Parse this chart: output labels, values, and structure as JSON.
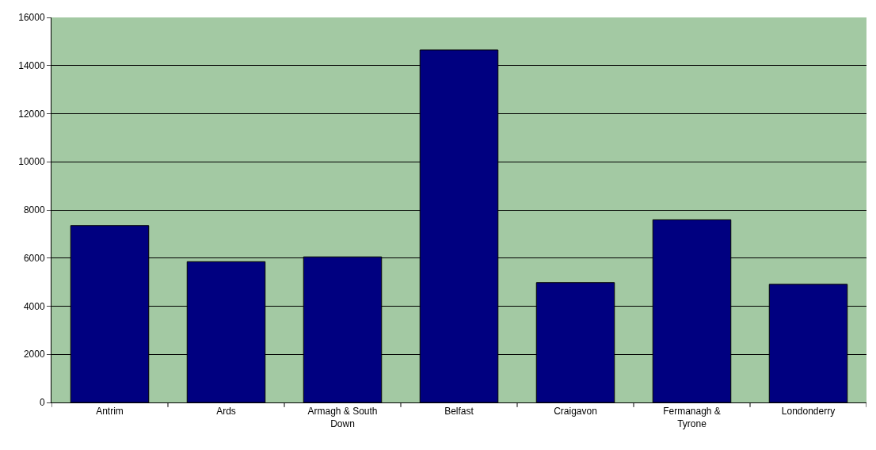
{
  "chart_data": {
    "type": "bar",
    "categories": [
      "Antrim",
      "Ards",
      "Armagh & South Down",
      "Belfast",
      "Craigavon",
      "Fermanagh & Tyrone",
      "Londonderry"
    ],
    "values": [
      7350,
      5850,
      6050,
      14650,
      4980,
      7590,
      4910
    ],
    "color": "#000080",
    "ylim": [
      0,
      16000
    ],
    "yticks": [
      0,
      2000,
      4000,
      6000,
      8000,
      10000,
      12000,
      14000,
      16000
    ],
    "grid": "y"
  }
}
